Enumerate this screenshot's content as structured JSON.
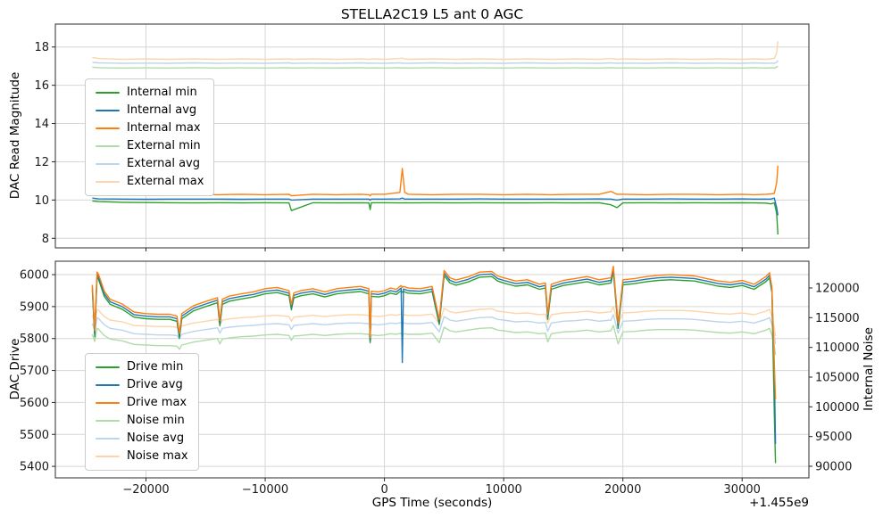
{
  "chart_data": [
    {
      "type": "line",
      "title": "STELLA2C19 L5 ant 0 AGC",
      "ylabel": "DAC Read Magnitude",
      "xlim": [
        -27600,
        35600
      ],
      "ylim_left": [
        7.5,
        19.2
      ],
      "xticks": [
        -20000,
        -10000,
        0,
        10000,
        20000,
        30000
      ],
      "show_x_tick_labels": false,
      "yticks_left": [
        8,
        10,
        12,
        14,
        16,
        18
      ],
      "grid": true,
      "legend_position": "center left",
      "x": [
        -24500,
        -24000,
        -22000,
        -20000,
        -18000,
        -16000,
        -14000,
        -12000,
        -10000,
        -8000,
        -7800,
        -6000,
        -4000,
        -2000,
        -1300,
        -1200,
        -1100,
        0,
        1300,
        1500,
        1700,
        2000,
        4000,
        6000,
        8000,
        10000,
        12000,
        14000,
        16000,
        18000,
        19000,
        19500,
        20000,
        22000,
        24000,
        26000,
        28000,
        30000,
        31000,
        32000,
        32400,
        32700,
        32900,
        33000
      ],
      "series": [
        {
          "name": "Internal min",
          "color": "#2ca02c",
          "layer": 1,
          "values": [
            9.95,
            9.92,
            9.88,
            9.87,
            9.86,
            9.85,
            9.86,
            9.85,
            9.86,
            9.85,
            9.45,
            9.86,
            9.85,
            9.86,
            9.85,
            9.5,
            9.86,
            9.86,
            9.85,
            9.85,
            9.86,
            9.85,
            9.86,
            9.85,
            9.86,
            9.85,
            9.85,
            9.86,
            9.85,
            9.86,
            9.75,
            9.6,
            9.85,
            9.86,
            9.85,
            9.86,
            9.85,
            9.86,
            9.85,
            9.84,
            9.8,
            9.85,
            9.3,
            8.2
          ]
        },
        {
          "name": "Internal avg",
          "color": "#1f77b4",
          "layer": 1,
          "values": [
            10.1,
            10.06,
            10.05,
            10.04,
            10.05,
            10.05,
            10.05,
            10.04,
            10.05,
            10.05,
            10.0,
            10.05,
            10.05,
            10.05,
            10.05,
            10.0,
            10.05,
            10.05,
            10.06,
            10.1,
            10.05,
            10.05,
            10.05,
            10.05,
            10.06,
            10.05,
            10.05,
            10.05,
            10.05,
            10.06,
            10.05,
            10.0,
            10.05,
            10.05,
            10.06,
            10.05,
            10.05,
            10.06,
            10.05,
            10.05,
            10.05,
            10.1,
            9.6,
            9.2
          ]
        },
        {
          "name": "Internal max",
          "color": "#ff7f0e",
          "layer": 1,
          "values": [
            10.35,
            10.32,
            10.28,
            10.3,
            10.28,
            10.3,
            10.28,
            10.3,
            10.28,
            10.3,
            10.22,
            10.3,
            10.28,
            10.3,
            10.28,
            10.22,
            10.3,
            10.3,
            10.4,
            11.65,
            10.4,
            10.3,
            10.28,
            10.3,
            10.3,
            10.28,
            10.3,
            10.28,
            10.3,
            10.3,
            10.45,
            10.3,
            10.3,
            10.28,
            10.3,
            10.3,
            10.28,
            10.3,
            10.28,
            10.3,
            10.32,
            10.35,
            10.9,
            11.8
          ]
        },
        {
          "name": "External min",
          "color": "#b0dcaa",
          "layer": 0,
          "values": [
            16.95,
            16.92,
            16.9,
            16.91,
            16.9,
            16.92,
            16.9,
            16.91,
            16.9,
            16.92,
            16.9,
            16.91,
            16.9,
            16.92,
            16.9,
            16.9,
            16.91,
            16.9,
            16.92,
            16.9,
            16.91,
            16.9,
            16.92,
            16.9,
            16.91,
            16.9,
            16.92,
            16.9,
            16.91,
            16.9,
            16.92,
            16.9,
            16.91,
            16.9,
            16.92,
            16.9,
            16.91,
            16.9,
            16.92,
            16.9,
            16.91,
            16.9,
            16.95,
            17.0
          ]
        },
        {
          "name": "External avg",
          "color": "#bcd5eb",
          "layer": 0,
          "values": [
            17.2,
            17.17,
            17.15,
            17.16,
            17.15,
            17.17,
            17.15,
            17.16,
            17.15,
            17.17,
            17.15,
            17.16,
            17.15,
            17.17,
            17.15,
            17.15,
            17.16,
            17.15,
            17.17,
            17.15,
            17.16,
            17.15,
            17.17,
            17.15,
            17.16,
            17.15,
            17.17,
            17.15,
            17.16,
            17.15,
            17.17,
            17.15,
            17.16,
            17.15,
            17.17,
            17.15,
            17.16,
            17.15,
            17.17,
            17.15,
            17.16,
            17.15,
            17.2,
            17.3
          ]
        },
        {
          "name": "External max",
          "color": "#fdd5ab",
          "layer": 0,
          "values": [
            17.45,
            17.4,
            17.36,
            17.38,
            17.36,
            17.38,
            17.36,
            17.38,
            17.36,
            17.38,
            17.36,
            17.38,
            17.36,
            17.38,
            17.36,
            17.36,
            17.38,
            17.36,
            17.4,
            17.42,
            17.38,
            17.36,
            17.38,
            17.36,
            17.38,
            17.36,
            17.38,
            17.36,
            17.38,
            17.36,
            17.4,
            17.36,
            17.38,
            17.36,
            17.38,
            17.36,
            17.38,
            17.36,
            17.38,
            17.36,
            17.38,
            17.4,
            17.7,
            18.3
          ]
        }
      ]
    },
    {
      "type": "line",
      "xlabel": "GPS Time (seconds)",
      "x_offset_text": "+1.455e9",
      "ylabel_left": "DAC Drive",
      "ylabel_right": "Internal Noise",
      "xlim": [
        -27600,
        35600
      ],
      "ylim_left": [
        5364,
        6042
      ],
      "ylim_right": [
        88050,
        124500
      ],
      "xticks": [
        -20000,
        -10000,
        0,
        10000,
        20000,
        30000
      ],
      "show_x_tick_labels": true,
      "yticks_left": [
        5400,
        5500,
        5600,
        5700,
        5800,
        5900,
        6000
      ],
      "yticks_right": [
        90000,
        95000,
        100000,
        105000,
        110000,
        115000,
        120000
      ],
      "grid": true,
      "legend_position": "lower left",
      "x": [
        -24500,
        -24300,
        -24100,
        -24000,
        -23500,
        -23000,
        -22000,
        -21000,
        -20000,
        -19000,
        -18000,
        -17400,
        -17200,
        -17000,
        -16000,
        -15000,
        -14000,
        -13800,
        -13600,
        -13000,
        -12000,
        -11000,
        -10000,
        -9000,
        -8000,
        -7800,
        -7600,
        -7000,
        -6000,
        -5000,
        -4000,
        -3000,
        -2000,
        -1300,
        -1200,
        -1100,
        -500,
        0,
        500,
        1000,
        1400,
        1500,
        1600,
        2000,
        3000,
        4000,
        4600,
        5000,
        5500,
        6000,
        7000,
        8000,
        9000,
        9500,
        10000,
        11000,
        12000,
        13000,
        13500,
        13700,
        14000,
        15000,
        16000,
        17000,
        18000,
        19000,
        19200,
        19600,
        20000,
        21000,
        22000,
        23000,
        24000,
        25000,
        26000,
        27000,
        28000,
        29000,
        30000,
        31000,
        32000,
        32300,
        32500,
        32700,
        32800
      ],
      "series": [
        {
          "name": "Drive min",
          "color": "#2ca02c",
          "axis": "left",
          "layer": 1,
          "values": [
            5952,
            5805,
            5992,
            5987,
            5932,
            5907,
            5892,
            5867,
            5862,
            5860,
            5860,
            5854,
            5800,
            5862,
            5887,
            5900,
            5912,
            5840,
            5907,
            5917,
            5924,
            5930,
            5940,
            5944,
            5934,
            5890,
            5927,
            5934,
            5940,
            5930,
            5940,
            5944,
            5947,
            5940,
            5788,
            5932,
            5930,
            5934,
            5942,
            5938,
            5950,
            5945,
            5947,
            5942,
            5940,
            5947,
            5844,
            5997,
            5974,
            5967,
            5977,
            5992,
            5994,
            5980,
            5974,
            5964,
            5968,
            5954,
            5958,
            5860,
            5954,
            5966,
            5972,
            5978,
            5968,
            5974,
            6010,
            5832,
            5968,
            5972,
            5978,
            5982,
            5984,
            5982,
            5980,
            5972,
            5964,
            5960,
            5966,
            5954,
            5978,
            5990,
            5944,
            5560,
            5410
          ]
        },
        {
          "name": "Drive avg",
          "color": "#1f77b4",
          "axis": "left",
          "layer": 1,
          "values": [
            5960,
            5815,
            6000,
            5995,
            5940,
            5915,
            5900,
            5875,
            5870,
            5868,
            5868,
            5862,
            5808,
            5870,
            5895,
            5908,
            5920,
            5848,
            5915,
            5925,
            5932,
            5938,
            5948,
            5952,
            5942,
            5898,
            5935,
            5942,
            5948,
            5938,
            5948,
            5952,
            5955,
            5948,
            5795,
            5940,
            5938,
            5942,
            5950,
            5946,
            5958,
            5725,
            5955,
            5950,
            5948,
            5955,
            5852,
            6005,
            5982,
            5975,
            5985,
            6000,
            6002,
            5988,
            5982,
            5972,
            5976,
            5962,
            5966,
            5868,
            5962,
            5974,
            5980,
            5986,
            5976,
            5982,
            6018,
            5840,
            5976,
            5980,
            5986,
            5990,
            5992,
            5990,
            5988,
            5980,
            5972,
            5968,
            5974,
            5962,
            5986,
            5998,
            5952,
            5700,
            5470
          ]
        },
        {
          "name": "Drive max",
          "color": "#ff7f0e",
          "axis": "left",
          "layer": 1,
          "values": [
            5968,
            5825,
            6008,
            6003,
            5948,
            5923,
            5908,
            5883,
            5878,
            5876,
            5876,
            5870,
            5816,
            5878,
            5903,
            5916,
            5928,
            5856,
            5923,
            5933,
            5940,
            5946,
            5956,
            5960,
            5950,
            5906,
            5943,
            5950,
            5956,
            5946,
            5956,
            5960,
            5963,
            5956,
            5803,
            5948,
            5946,
            5950,
            5958,
            5954,
            5966,
            5960,
            5963,
            5958,
            5956,
            5963,
            5860,
            6013,
            5990,
            5983,
            5993,
            6008,
            6010,
            5996,
            5990,
            5980,
            5984,
            5970,
            5974,
            5876,
            5970,
            5982,
            5988,
            5994,
            5984,
            5990,
            6026,
            5848,
            5984,
            5988,
            5994,
            5998,
            6000,
            5998,
            5996,
            5988,
            5980,
            5976,
            5982,
            5970,
            5994,
            6006,
            5960,
            5720,
            5610
          ]
        },
        {
          "name": "Noise min",
          "color": "#b0dcaa",
          "axis": "right",
          "layer": 0,
          "values": [
            112200,
            111000,
            113200,
            113100,
            112000,
            111400,
            111100,
            110500,
            110400,
            110300,
            110300,
            110200,
            109700,
            110400,
            110900,
            111200,
            111500,
            110600,
            111400,
            111600,
            111800,
            111900,
            112100,
            112200,
            112000,
            111200,
            111900,
            112000,
            112200,
            112000,
            112200,
            112300,
            112300,
            112200,
            110700,
            112100,
            112000,
            112100,
            112300,
            112200,
            112400,
            111800,
            112300,
            112200,
            112200,
            112400,
            110800,
            113400,
            112800,
            112600,
            112900,
            113200,
            113300,
            112900,
            112800,
            112500,
            112600,
            112300,
            112400,
            110900,
            112300,
            112600,
            112700,
            112900,
            112600,
            112800,
            113700,
            110600,
            112600,
            112700,
            112900,
            113000,
            113000,
            113000,
            112900,
            112700,
            112500,
            112400,
            112600,
            112300,
            112900,
            113200,
            112100,
            110200,
            108700
          ]
        },
        {
          "name": "Noise avg",
          "color": "#bcd5eb",
          "axis": "right",
          "layer": 0,
          "values": [
            114000,
            112800,
            115000,
            114900,
            113800,
            113200,
            112900,
            112300,
            112200,
            112100,
            112100,
            112000,
            111500,
            112200,
            112700,
            113000,
            113300,
            112400,
            113200,
            113400,
            113600,
            113700,
            113900,
            114000,
            113800,
            113000,
            113700,
            113800,
            114000,
            113800,
            114000,
            114100,
            114100,
            114000,
            112500,
            113900,
            113800,
            113900,
            114100,
            114000,
            114200,
            113600,
            114100,
            114000,
            114000,
            114200,
            112600,
            115200,
            114600,
            114400,
            114700,
            115000,
            115100,
            114700,
            114600,
            114300,
            114400,
            114100,
            114200,
            112700,
            114100,
            114400,
            114500,
            114700,
            114400,
            114600,
            115500,
            112400,
            114400,
            114500,
            114700,
            114800,
            114800,
            114800,
            114700,
            114500,
            114300,
            114200,
            114400,
            114100,
            114700,
            115000,
            113900,
            112000,
            110500
          ]
        },
        {
          "name": "Noise max",
          "color": "#fdd5ab",
          "axis": "right",
          "layer": 0,
          "values": [
            115400,
            114200,
            116400,
            116300,
            115200,
            114600,
            114300,
            113700,
            113600,
            113500,
            113500,
            113400,
            112900,
            113600,
            114100,
            114400,
            114700,
            113800,
            114600,
            114800,
            115000,
            115100,
            115300,
            115400,
            115200,
            114400,
            115100,
            115200,
            115400,
            115200,
            115400,
            115500,
            115500,
            115400,
            113900,
            115300,
            115200,
            115300,
            115500,
            115400,
            115600,
            115000,
            115500,
            115400,
            115400,
            115600,
            114000,
            116600,
            116000,
            115800,
            116100,
            116400,
            116500,
            116100,
            116000,
            115700,
            115800,
            115500,
            115600,
            114100,
            115500,
            115800,
            115900,
            116100,
            115800,
            116000,
            116900,
            113800,
            115800,
            115900,
            116100,
            116200,
            116200,
            116200,
            116100,
            115900,
            115700,
            115600,
            115800,
            115500,
            116100,
            116400,
            115300,
            113400,
            111900
          ]
        }
      ]
    }
  ]
}
